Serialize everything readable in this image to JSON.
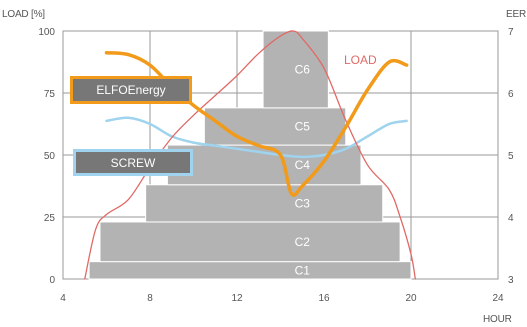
{
  "axes": {
    "y_left_title": "LOAD [%]",
    "y_right_title": "EER",
    "x_title": "HOUR"
  },
  "legend": {
    "elfo_label": "ELFOEnergy",
    "screw_label": "SCREW",
    "load_label": "LOAD"
  },
  "colors": {
    "elfo": "#f29a1a",
    "screw": "#9fd3ee",
    "load": "#e06a66",
    "blocks": "#b3b3b3",
    "legend_bg": "#777777"
  },
  "chart_data": {
    "type": "area",
    "x_label": "HOUR",
    "xlim": [
      4,
      24
    ],
    "x_ticks": [
      4,
      8,
      12,
      16,
      20,
      24
    ],
    "y_left": {
      "label": "LOAD [%]",
      "lim": [
        0,
        100
      ],
      "ticks": [
        0,
        25,
        50,
        75,
        100
      ]
    },
    "y_right": {
      "label": "EER",
      "lim": [
        3,
        7
      ],
      "ticks": [
        3,
        4,
        5,
        6,
        7
      ]
    },
    "grid": true,
    "blocks": [
      {
        "label": "C1",
        "x_start": 5.2,
        "x_end": 20.0,
        "y_bottom": 0,
        "y_top": 7
      },
      {
        "label": "C2",
        "x_start": 5.7,
        "x_end": 19.5,
        "y_bottom": 7,
        "y_top": 23
      },
      {
        "label": "C3",
        "x_start": 7.8,
        "x_end": 18.7,
        "y_bottom": 23,
        "y_top": 38
      },
      {
        "label": "C4",
        "x_start": 8.8,
        "x_end": 17.7,
        "y_bottom": 38,
        "y_top": 54
      },
      {
        "label": "C5",
        "x_start": 10.5,
        "x_end": 17.0,
        "y_bottom": 54,
        "y_top": 69
      },
      {
        "label": "C6",
        "x_start": 13.2,
        "x_end": 16.2,
        "y_bottom": 69,
        "y_top": 100
      }
    ],
    "series": [
      {
        "name": "LOAD",
        "axis": "left",
        "x": [
          5.0,
          5.5,
          6.0,
          7.0,
          8.0,
          9.0,
          10.0,
          11.0,
          12.0,
          13.0,
          14.0,
          14.6,
          15.0,
          16.0,
          17.0,
          18.0,
          19.0,
          19.5,
          20.0,
          20.2
        ],
        "y": [
          0,
          20,
          26,
          32,
          45,
          57,
          66,
          74,
          82,
          91,
          98,
          100,
          97,
          85,
          64,
          46,
          36,
          25,
          10,
          0
        ]
      },
      {
        "name": "ELFOEnergy",
        "axis": "right",
        "x": [
          6.0,
          7.0,
          8.0,
          9.0,
          10.0,
          11.0,
          12.0,
          13.0,
          14.0,
          14.5,
          15.0,
          16.0,
          17.0,
          18.0,
          19.0,
          19.8
        ],
        "y": [
          6.65,
          6.62,
          6.45,
          6.1,
          5.8,
          5.55,
          5.3,
          5.15,
          5.0,
          4.38,
          4.5,
          4.9,
          5.45,
          6.05,
          6.5,
          6.45
        ]
      },
      {
        "name": "SCREW",
        "axis": "right",
        "x": [
          6.0,
          7.0,
          8.0,
          9.0,
          10.0,
          11.0,
          12.0,
          13.0,
          14.0,
          15.0,
          16.0,
          17.0,
          18.0,
          19.0,
          19.8
        ],
        "y": [
          5.55,
          5.6,
          5.5,
          5.3,
          5.2,
          5.15,
          5.1,
          5.05,
          5.0,
          4.97,
          5.0,
          5.1,
          5.3,
          5.5,
          5.55
        ]
      }
    ]
  }
}
